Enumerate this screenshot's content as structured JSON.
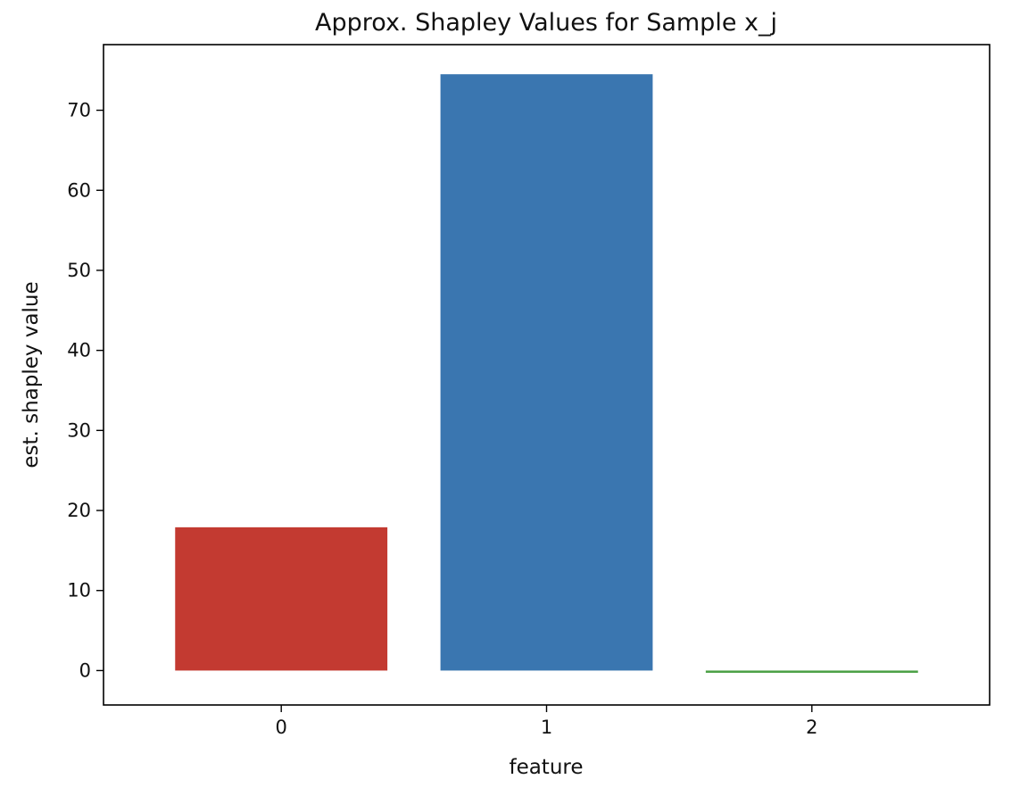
{
  "chart_data": {
    "type": "bar",
    "title": "Approx. Shapley Values for Sample x_j",
    "xlabel": "feature",
    "ylabel": "est. shapley value",
    "categories": [
      "0",
      "1",
      "2"
    ],
    "values": [
      17.9,
      74.5,
      -0.2
    ],
    "colors": [
      "#c33a31",
      "#3a76b0",
      "#4aa044"
    ],
    "ylim": [
      -4.3,
      78.2
    ],
    "yticks": [
      0,
      10,
      20,
      30,
      40,
      50,
      60,
      70
    ],
    "ytick_labels": [
      "0",
      "10",
      "20",
      "30",
      "40",
      "50",
      "60",
      "70"
    ],
    "bar_width": 0.8,
    "grid": false,
    "legend": "none"
  }
}
